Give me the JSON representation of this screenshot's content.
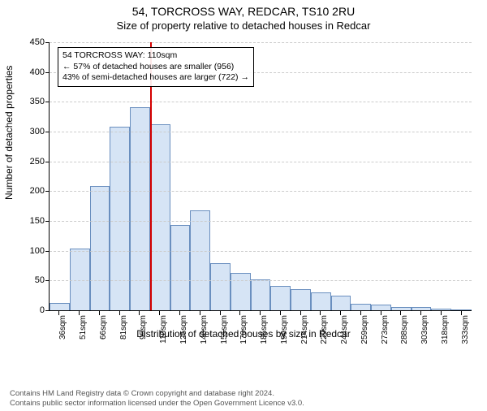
{
  "title_main": "54, TORCROSS WAY, REDCAR, TS10 2RU",
  "title_sub": "Size of property relative to detached houses in Redcar",
  "y_label": "Number of detached properties",
  "x_label": "Distribution of detached houses by size in Redcar",
  "chart": {
    "type": "histogram",
    "ylim": [
      0,
      450
    ],
    "ytick_step": 50,
    "bar_fill": "#d6e4f5",
    "bar_stroke": "#6a8fbf",
    "grid_color": "#cccccc",
    "background_color": "#ffffff",
    "marker_color": "#d40000",
    "marker_category": "110sqm",
    "categories": [
      "36sqm",
      "51sqm",
      "66sqm",
      "81sqm",
      "95sqm",
      "110sqm",
      "125sqm",
      "140sqm",
      "155sqm",
      "170sqm",
      "185sqm",
      "199sqm",
      "214sqm",
      "229sqm",
      "244sqm",
      "259sqm",
      "273sqm",
      "288sqm",
      "303sqm",
      "318sqm",
      "333sqm"
    ],
    "values": [
      12,
      103,
      208,
      308,
      341,
      312,
      143,
      168,
      79,
      63,
      52,
      41,
      35,
      30,
      24,
      11,
      9,
      5,
      5,
      3,
      2
    ]
  },
  "annotation": {
    "line1": "54 TORCROSS WAY: 110sqm",
    "line2": "← 57% of detached houses are smaller (956)",
    "line3": "43% of semi-detached houses are larger (722) →"
  },
  "footer": {
    "line1": "Contains HM Land Registry data © Crown copyright and database right 2024.",
    "line2": "Contains public sector information licensed under the Open Government Licence v3.0."
  }
}
